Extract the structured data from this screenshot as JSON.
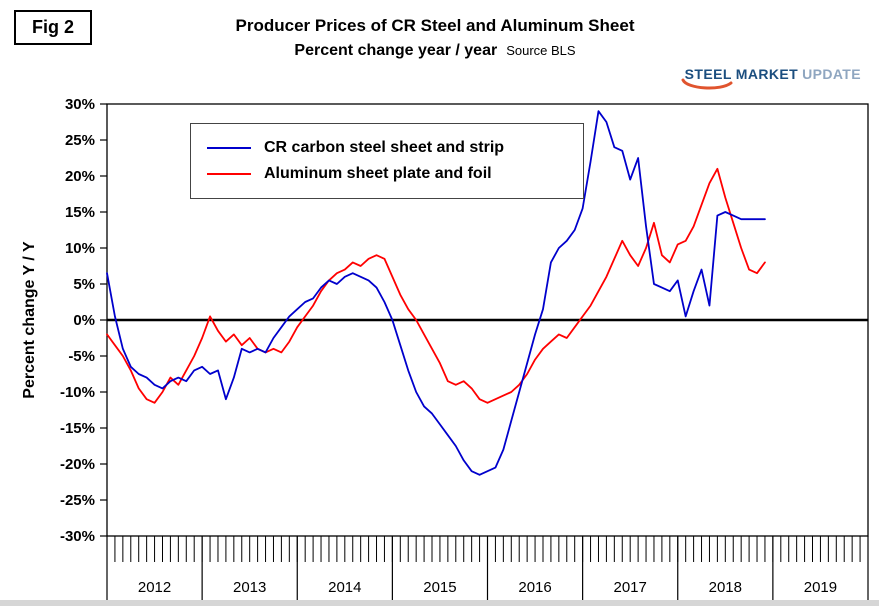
{
  "fig_label": "Fig 2",
  "header": {
    "title": "Producer Prices of CR Steel and Aluminum Sheet",
    "subtitle": "Percent change year / year",
    "source": "Source BLS"
  },
  "logo": {
    "word1": "STEEL",
    "word2": "MARKET",
    "word3": "UPDATE",
    "blue": "#1B4E7F",
    "gray": "#8FA6C0",
    "orange": "#E0542E"
  },
  "chart_data": {
    "type": "line",
    "title": "Producer Prices of CR Steel and Aluminum Sheet",
    "subtitle": "Percent change year / year",
    "source": "Source BLS",
    "ylabel": "Percent change Y / Y",
    "ylim": [
      -30,
      30
    ],
    "ytick_step": 5,
    "ytick_labels": [
      "30%",
      "25%",
      "20%",
      "15%",
      "10%",
      "5%",
      "0%",
      "-5%",
      "-10%",
      "-15%",
      "-20%",
      "-25%",
      "-30%"
    ],
    "x_year_labels": [
      "2012",
      "2013",
      "2014",
      "2015",
      "2016",
      "2017",
      "2018",
      "2019"
    ],
    "x_start": "2012-01",
    "x_end": "2018-12",
    "x_unit": "month",
    "grid": false,
    "zero_line": true,
    "legend_position": "top-left-inside",
    "series": [
      {
        "name": "CR carbon steel sheet and strip",
        "color": "#0000CC",
        "start": "2012-01",
        "values": [
          6.5,
          0.5,
          -4,
          -6.5,
          -7.5,
          -8,
          -9,
          -9.5,
          -8.5,
          -8,
          -8.5,
          -7,
          -6.5,
          -7.5,
          -7,
          -11,
          -8,
          -4,
          -4.5,
          -4,
          -4.5,
          -2.5,
          -1,
          0.5,
          1.5,
          2.5,
          3,
          4.5,
          5.5,
          5,
          6,
          6.5,
          6,
          5.5,
          4.5,
          2.5,
          0,
          -3.5,
          -7,
          -10,
          -12,
          -13,
          -14.5,
          -16,
          -17.5,
          -19.5,
          -21,
          -21.5,
          -21,
          -20.5,
          -18,
          -14,
          -10,
          -6,
          -2,
          1.5,
          8,
          10,
          11,
          12.5,
          15.5,
          22,
          29,
          27.5,
          24,
          23.5,
          19.5,
          22.5,
          13,
          5,
          4.5,
          4,
          5.5,
          0.5,
          4,
          7,
          2,
          14.5,
          15,
          14.5,
          14,
          14,
          14,
          14
        ]
      },
      {
        "name": "Aluminum sheet plate and foil",
        "color": "#FF0000",
        "start": "2012-01",
        "values": [
          -2,
          -3.5,
          -5,
          -7,
          -9.5,
          -11,
          -11.5,
          -10,
          -8,
          -9,
          -7,
          -5,
          -2.5,
          0.5,
          -1.5,
          -3,
          -2,
          -3.5,
          -2.5,
          -4,
          -4.5,
          -4,
          -4.5,
          -3,
          -1,
          0.5,
          2,
          4,
          5.5,
          6.5,
          7,
          8,
          7.5,
          8.5,
          9,
          8.5,
          6,
          3.5,
          1.5,
          0,
          -2,
          -4,
          -6,
          -8.5,
          -9,
          -8.5,
          -9.5,
          -11,
          -11.5,
          -11,
          -10.5,
          -10,
          -9,
          -7.5,
          -5.5,
          -4,
          -3,
          -2,
          -2.5,
          -1,
          0.5,
          2,
          4,
          6,
          8.5,
          11,
          9,
          7.5,
          10,
          13.5,
          9,
          8,
          10.5,
          11,
          13,
          16,
          19,
          21,
          17,
          13.5,
          10,
          7,
          6.5,
          8
        ]
      }
    ]
  }
}
